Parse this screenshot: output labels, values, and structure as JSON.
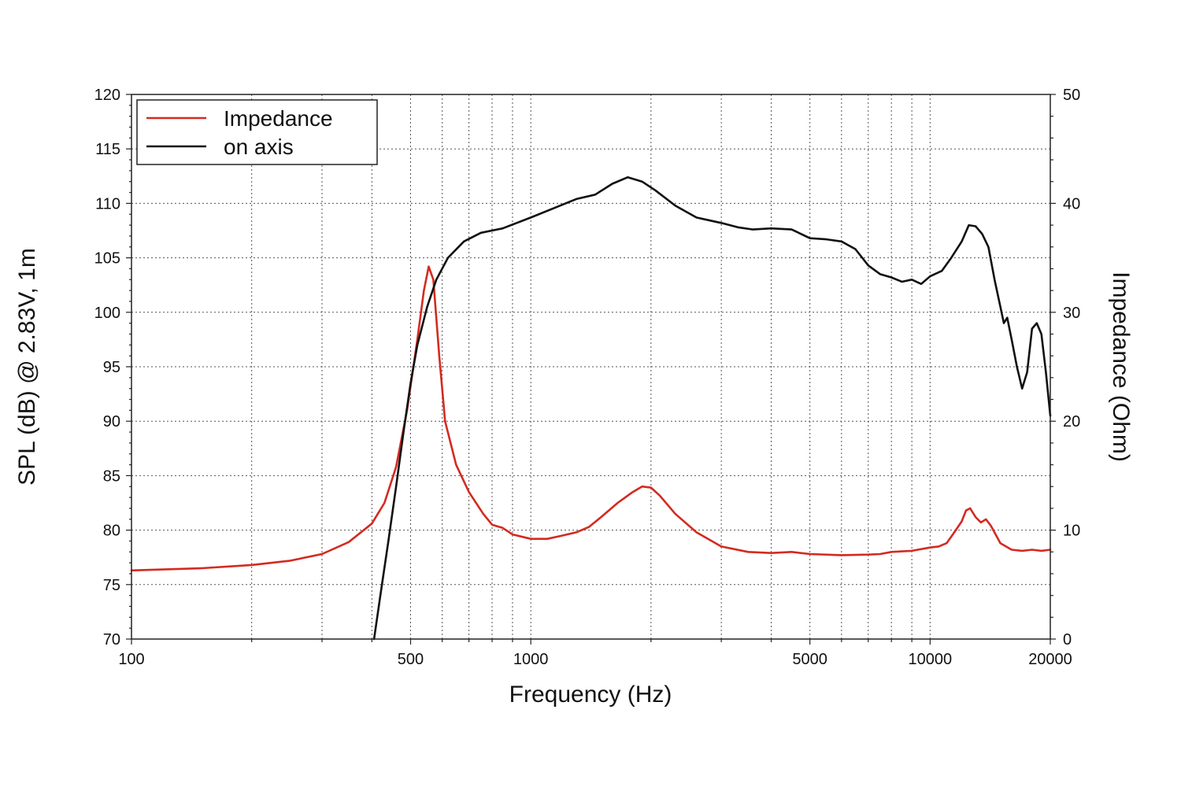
{
  "chart_data": {
    "type": "line",
    "xlabel": "Frequency (Hz)",
    "ylabel_left": "SPL (dB) @ 2.83V, 1m",
    "ylabel_right": "Impedance (Ohm)",
    "x_scale": "log",
    "xlim": [
      100,
      20000
    ],
    "ylim_left": [
      70,
      120
    ],
    "ylim_right": [
      0,
      50
    ],
    "x_tick_labels": [
      "100",
      "500",
      "1000",
      "5000",
      "10000",
      "20000"
    ],
    "x_ticks": [
      100,
      500,
      1000,
      5000,
      10000,
      20000
    ],
    "x_minor_grid": [
      200,
      300,
      400,
      600,
      700,
      800,
      900,
      2000,
      3000,
      4000,
      6000,
      7000,
      8000,
      9000
    ],
    "y_left_ticks": [
      70,
      75,
      80,
      85,
      90,
      95,
      100,
      105,
      110,
      115,
      120
    ],
    "y_right_ticks": [
      0,
      10,
      20,
      30,
      40,
      50
    ],
    "grid": true,
    "legend_position": "top-left",
    "series": [
      {
        "name": "Impedance",
        "color": "#d42a20",
        "axis": "right",
        "points": [
          [
            100,
            6.3
          ],
          [
            150,
            6.5
          ],
          [
            200,
            6.8
          ],
          [
            250,
            7.2
          ],
          [
            300,
            7.8
          ],
          [
            350,
            8.9
          ],
          [
            400,
            10.6
          ],
          [
            430,
            12.5
          ],
          [
            460,
            15.8
          ],
          [
            490,
            21.0
          ],
          [
            520,
            27.5
          ],
          [
            540,
            32.0
          ],
          [
            555,
            34.2
          ],
          [
            570,
            33.0
          ],
          [
            590,
            26.0
          ],
          [
            610,
            20.0
          ],
          [
            650,
            16.0
          ],
          [
            700,
            13.5
          ],
          [
            760,
            11.5
          ],
          [
            800,
            10.5
          ],
          [
            850,
            10.2
          ],
          [
            900,
            9.6
          ],
          [
            1000,
            9.2
          ],
          [
            1100,
            9.2
          ],
          [
            1200,
            9.5
          ],
          [
            1300,
            9.8
          ],
          [
            1400,
            10.3
          ],
          [
            1500,
            11.2
          ],
          [
            1650,
            12.5
          ],
          [
            1800,
            13.5
          ],
          [
            1900,
            14.0
          ],
          [
            2000,
            13.9
          ],
          [
            2100,
            13.2
          ],
          [
            2300,
            11.5
          ],
          [
            2600,
            9.8
          ],
          [
            3000,
            8.5
          ],
          [
            3500,
            8.0
          ],
          [
            4000,
            7.9
          ],
          [
            4500,
            8.0
          ],
          [
            5000,
            7.8
          ],
          [
            6000,
            7.7
          ],
          [
            7000,
            7.75
          ],
          [
            7500,
            7.8
          ],
          [
            8000,
            8.0
          ],
          [
            9000,
            8.1
          ],
          [
            10000,
            8.4
          ],
          [
            10500,
            8.5
          ],
          [
            11000,
            8.8
          ],
          [
            11500,
            9.8
          ],
          [
            12000,
            10.8
          ],
          [
            12300,
            11.8
          ],
          [
            12600,
            12.0
          ],
          [
            13000,
            11.2
          ],
          [
            13400,
            10.7
          ],
          [
            13800,
            11.0
          ],
          [
            14200,
            10.4
          ],
          [
            15000,
            8.8
          ],
          [
            16000,
            8.2
          ],
          [
            17000,
            8.1
          ],
          [
            18000,
            8.2
          ],
          [
            19000,
            8.1
          ],
          [
            20000,
            8.2
          ]
        ]
      },
      {
        "name": "on axis",
        "color": "#111111",
        "axis": "left",
        "points": [
          [
            405,
            70.0
          ],
          [
            420,
            74.0
          ],
          [
            440,
            79.0
          ],
          [
            460,
            84.0
          ],
          [
            480,
            89.0
          ],
          [
            500,
            93.5
          ],
          [
            520,
            97.0
          ],
          [
            550,
            100.5
          ],
          [
            580,
            103.0
          ],
          [
            620,
            105.0
          ],
          [
            680,
            106.5
          ],
          [
            750,
            107.3
          ],
          [
            850,
            107.7
          ],
          [
            1000,
            108.7
          ],
          [
            1150,
            109.6
          ],
          [
            1300,
            110.4
          ],
          [
            1450,
            110.8
          ],
          [
            1600,
            111.8
          ],
          [
            1750,
            112.4
          ],
          [
            1900,
            112.0
          ],
          [
            2050,
            111.2
          ],
          [
            2300,
            109.8
          ],
          [
            2600,
            108.7
          ],
          [
            3000,
            108.2
          ],
          [
            3300,
            107.8
          ],
          [
            3600,
            107.6
          ],
          [
            4000,
            107.7
          ],
          [
            4500,
            107.6
          ],
          [
            5000,
            106.8
          ],
          [
            5500,
            106.7
          ],
          [
            6000,
            106.5
          ],
          [
            6500,
            105.8
          ],
          [
            7000,
            104.3
          ],
          [
            7500,
            103.5
          ],
          [
            8000,
            103.2
          ],
          [
            8500,
            102.8
          ],
          [
            9000,
            103.0
          ],
          [
            9500,
            102.6
          ],
          [
            10000,
            103.3
          ],
          [
            10700,
            103.8
          ],
          [
            11300,
            105.0
          ],
          [
            12000,
            106.5
          ],
          [
            12500,
            108.0
          ],
          [
            13000,
            107.9
          ],
          [
            13500,
            107.2
          ],
          [
            14000,
            106.0
          ],
          [
            14500,
            103.0
          ],
          [
            15000,
            100.5
          ],
          [
            15300,
            99.0
          ],
          [
            15600,
            99.5
          ],
          [
            16000,
            97.5
          ],
          [
            16500,
            95.0
          ],
          [
            17000,
            93.0
          ],
          [
            17500,
            94.5
          ],
          [
            18000,
            98.5
          ],
          [
            18500,
            99.0
          ],
          [
            19000,
            98.0
          ],
          [
            19500,
            94.5
          ],
          [
            20000,
            90.5
          ]
        ]
      }
    ]
  }
}
